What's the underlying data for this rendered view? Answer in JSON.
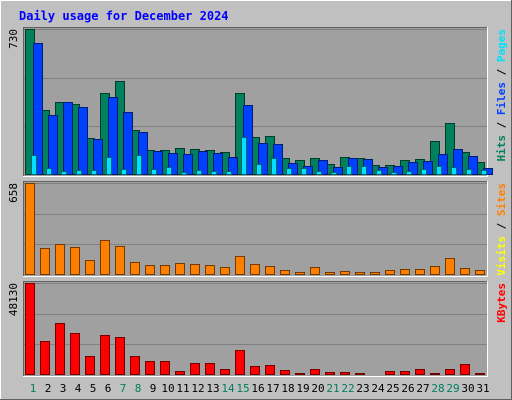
{
  "title": "Daily usage for December 2024",
  "colors": {
    "background": "#c0c0c0",
    "panel": "#a0a0a0",
    "grid": "#808080",
    "title": "#0000ff",
    "hits": "#00805c",
    "files": "#0040ff",
    "pages": "#00e0ff",
    "visits": "#ffff00",
    "sites": "#ff8000",
    "kbytes": "#ff0000",
    "weekend_label": "#00805c"
  },
  "chart_data": [
    {
      "type": "bar",
      "name": "hits-files-pages",
      "ymax_label": "730",
      "ymax": 730,
      "legend": [
        {
          "key": "pages",
          "text": "Pages"
        },
        {
          "key": "sep",
          "text": " / "
        },
        {
          "key": "files",
          "text": "Files"
        },
        {
          "key": "sep",
          "text": " / "
        },
        {
          "key": "hits",
          "text": "Hits"
        }
      ],
      "categories": [
        "1",
        "2",
        "3",
        "4",
        "5",
        "6",
        "7",
        "8",
        "9",
        "10",
        "11",
        "12",
        "13",
        "14",
        "15",
        "16",
        "17",
        "18",
        "19",
        "20",
        "21",
        "22",
        "23",
        "24",
        "25",
        "26",
        "27",
        "28",
        "29",
        "30",
        "31"
      ],
      "series": [
        {
          "key": "hits",
          "values": [
            730,
            325,
            365,
            355,
            185,
            410,
            470,
            225,
            125,
            125,
            135,
            130,
            125,
            115,
            410,
            190,
            195,
            85,
            75,
            85,
            55,
            90,
            85,
            50,
            50,
            75,
            80,
            170,
            260,
            115,
            65
          ]
        },
        {
          "key": "files",
          "values": [
            660,
            300,
            365,
            340,
            180,
            390,
            315,
            215,
            120,
            110,
            105,
            120,
            110,
            90,
            350,
            160,
            155,
            60,
            45,
            75,
            40,
            85,
            80,
            40,
            45,
            65,
            70,
            105,
            130,
            95,
            35
          ]
        },
        {
          "key": "pages",
          "values": [
            100,
            35,
            20,
            25,
            25,
            90,
            30,
            100,
            30,
            40,
            15,
            25,
            20,
            20,
            190,
            55,
            85,
            35,
            35,
            20,
            15,
            45,
            45,
            25,
            15,
            20,
            30,
            45,
            40,
            30,
            25
          ]
        }
      ]
    },
    {
      "type": "bar",
      "name": "sites-visits",
      "ymax_label": "658",
      "ymax": 658,
      "legend": [
        {
          "key": "sites",
          "text": "Sites"
        },
        {
          "key": "sep",
          "text": " / "
        },
        {
          "key": "visits",
          "text": "Visits"
        }
      ],
      "categories": [
        "1",
        "2",
        "3",
        "4",
        "5",
        "6",
        "7",
        "8",
        "9",
        "10",
        "11",
        "12",
        "13",
        "14",
        "15",
        "16",
        "17",
        "18",
        "19",
        "20",
        "21",
        "22",
        "23",
        "24",
        "25",
        "26",
        "27",
        "28",
        "29",
        "30",
        "31"
      ],
      "series": [
        {
          "key": "visits",
          "values": [
            60,
            10,
            10,
            10,
            10,
            55,
            10,
            10,
            10,
            10,
            10,
            10,
            10,
            10,
            10,
            10,
            5,
            5,
            5,
            5,
            5,
            5,
            5,
            5,
            5,
            5,
            5,
            5,
            5,
            5,
            5
          ]
        },
        {
          "key": "sites",
          "values": [
            658,
            195,
            220,
            200,
            105,
            250,
            205,
            95,
            70,
            70,
            85,
            80,
            70,
            60,
            135,
            80,
            65,
            35,
            25,
            55,
            25,
            30,
            25,
            25,
            35,
            40,
            45,
            65,
            120,
            50,
            35
          ]
        }
      ]
    },
    {
      "type": "bar",
      "name": "kbytes",
      "ymax_label": "48130",
      "ymax": 48130,
      "legend": [
        {
          "key": "kbytes",
          "text": "KBytes"
        }
      ],
      "categories": [
        "1",
        "2",
        "3",
        "4",
        "5",
        "6",
        "7",
        "8",
        "9",
        "10",
        "11",
        "12",
        "13",
        "14",
        "15",
        "16",
        "17",
        "18",
        "19",
        "20",
        "21",
        "22",
        "23",
        "24",
        "25",
        "26",
        "27",
        "28",
        "29",
        "30",
        "31"
      ],
      "series": [
        {
          "key": "kbytes",
          "values": [
            48130,
            18000,
            27000,
            22000,
            10000,
            21000,
            20000,
            10000,
            7500,
            7500,
            2000,
            6500,
            6500,
            3000,
            13000,
            4500,
            5000,
            2500,
            1000,
            3000,
            1500,
            1500,
            1000,
            500,
            2000,
            2000,
            3000,
            1000,
            3000,
            5500,
            1000
          ]
        }
      ]
    }
  ],
  "x_labels": [
    {
      "text": "1",
      "weekend": true
    },
    {
      "text": "2",
      "weekend": false
    },
    {
      "text": "3",
      "weekend": false
    },
    {
      "text": "4",
      "weekend": false
    },
    {
      "text": "5",
      "weekend": false
    },
    {
      "text": "6",
      "weekend": false
    },
    {
      "text": "7",
      "weekend": true
    },
    {
      "text": "8",
      "weekend": true
    },
    {
      "text": "9",
      "weekend": false
    },
    {
      "text": "10",
      "weekend": false
    },
    {
      "text": "11",
      "weekend": false
    },
    {
      "text": "12",
      "weekend": false
    },
    {
      "text": "13",
      "weekend": false
    },
    {
      "text": "14",
      "weekend": true
    },
    {
      "text": "15",
      "weekend": true
    },
    {
      "text": "16",
      "weekend": false
    },
    {
      "text": "17",
      "weekend": false
    },
    {
      "text": "18",
      "weekend": false
    },
    {
      "text": "19",
      "weekend": false
    },
    {
      "text": "20",
      "weekend": false
    },
    {
      "text": "21",
      "weekend": true
    },
    {
      "text": "22",
      "weekend": true
    },
    {
      "text": "23",
      "weekend": false
    },
    {
      "text": "24",
      "weekend": false
    },
    {
      "text": "25",
      "weekend": false
    },
    {
      "text": "26",
      "weekend": false
    },
    {
      "text": "27",
      "weekend": false
    },
    {
      "text": "28",
      "weekend": true
    },
    {
      "text": "29",
      "weekend": true
    },
    {
      "text": "30",
      "weekend": false
    },
    {
      "text": "31",
      "weekend": false
    }
  ]
}
